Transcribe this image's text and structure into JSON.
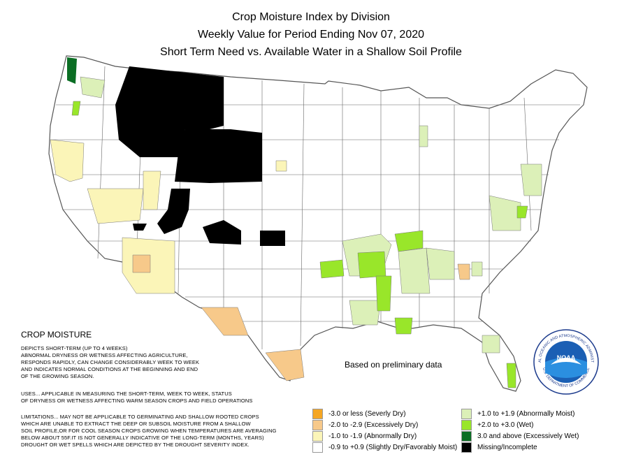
{
  "title_lines": [
    "Crop Moisture Index by Division",
    "Weekly Value for Period Ending Nov 07, 2020",
    "Short Term Need vs. Available Water in a Shallow Soil Profile"
  ],
  "map": {
    "region": "Contiguous United States climate divisions",
    "note": "Based on preliminary data"
  },
  "description": {
    "heading": "CROP MOISTURE",
    "paragraph1": [
      "DEPICTS SHORT-TERM (UP TO 4 WEEKS)",
      "ABNORMAL DRYNESS OR WETNESS AFFECTING AGRICULTURE,",
      "RESPONDS RAPIDLY, CAN CHANGE CONSIDERABLY WEEK TO WEEK",
      "AND INDICATES NORMAL CONDITIONS AT THE BEGINNING AND END",
      "OF THE GROWING SEASON."
    ],
    "paragraph2": [
      "USES... APPLICABLE IN MEASURING THE SHORT-TERM, WEEK TO WEEK, STATUS",
      "OF DRYNESS OR WETNESS AFFECTING WARM SEASON CROPS AND FIELD OPERATIONS"
    ],
    "paragraph3": [
      "LIMITATIONS... MAY NOT BE APPLICABLE TO GERMINATING AND SHALLOW ROOTED CROPS",
      "WHICH ARE UNABLE TO EXTRACT THE DEEP OR SUBSOIL MOISTURE FROM A SHALLOW",
      "SOIL PROFILE,OR FOR COOL SEASON CROPS GROWING WHEN TEMPERATURES ARE AVERAGING",
      "BELOW ABOUT 55F.IT IS NOT GENERALLY INDICATIVE OF THE LONG-TERM (MONTHS, YEARS)",
      "DROUGHT OR WET SPELLS WHICH ARE DEPICTED BY THE DROUGHT SEVERITY INDEX."
    ]
  },
  "legend": [
    {
      "label": "-3.0 or less (Severly Dry)",
      "color": "#f5a623"
    },
    {
      "label": "-2.0 to -2.9 (Excessively Dry)",
      "color": "#f7c98a"
    },
    {
      "label": "-1.0 to -1.9 (Abnormally Dry)",
      "color": "#fbf5b8"
    },
    {
      "label": "-0.9 to +0.9 (Slightly Dry/Favorably Moist)",
      "color": "#ffffff"
    },
    {
      "label": "+1.0 to +1.9 (Abnormally Moist)",
      "color": "#dcf0b8"
    },
    {
      "label": "+2.0 to +3.0 (Wet)",
      "color": "#99e62a"
    },
    {
      "label": "3.0 and above (Excessively Wet)",
      "color": "#0b6e24"
    },
    {
      "label": "Missing/Incomplete",
      "color": "#000000"
    }
  ],
  "logo": {
    "acronym": "NOAA",
    "ring_top": "NATIONAL OCEANIC AND ATMOSPHERIC ADMINISTRATION",
    "ring_bottom": "U.S. DEPARTMENT OF COMMERCE"
  }
}
